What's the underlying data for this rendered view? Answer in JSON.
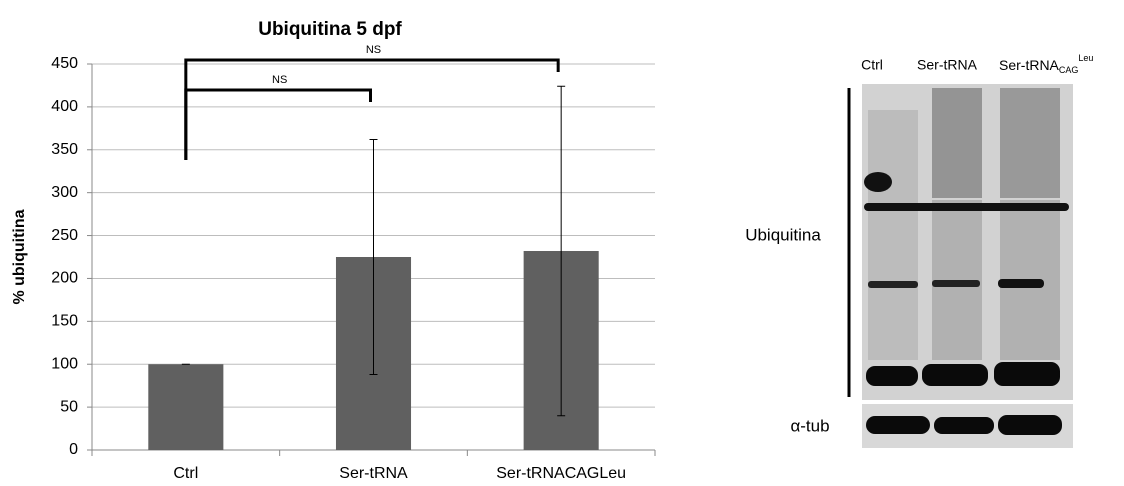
{
  "chart_data": {
    "type": "bar",
    "title": "Ubiquitina 5 dpf",
    "ylabel": "% ubiquitina",
    "categories": [
      "Ctrl",
      "Ser-tRNA",
      "Ser-tRNACAGLeu"
    ],
    "values": [
      100,
      225,
      232
    ],
    "errors": [
      0,
      137,
      192
    ],
    "color": "#606060",
    "ylim": [
      0,
      450
    ],
    "yticks": [
      0,
      50,
      100,
      150,
      200,
      250,
      300,
      350,
      400,
      450
    ],
    "grid": true,
    "annotations": [
      "NS",
      "NS"
    ]
  },
  "blot": {
    "lanes": [
      "Ctrl",
      "Ser-tRNA",
      "Ser-tRNA"
    ],
    "lane3_sub": "CAG",
    "lane3_sup": "Leu",
    "bands": [
      "Ubiquitina",
      "α-tub"
    ]
  }
}
